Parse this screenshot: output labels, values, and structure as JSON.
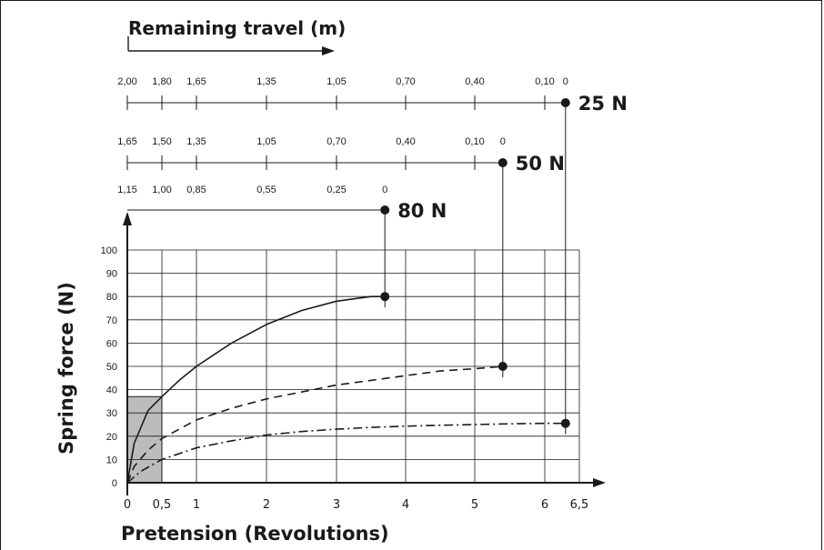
{
  "chart_data": {
    "type": "line",
    "title": "Remaining travel (m)",
    "xlabel": "Pretension (Revolutions)",
    "ylabel": "Spring force (N)",
    "xlim": [
      0,
      6.5
    ],
    "ylim": [
      0,
      100
    ],
    "x_ticks": [
      "0",
      "0,5",
      "1",
      "2",
      "3",
      "4",
      "5",
      "6",
      "6,5"
    ],
    "y_ticks": [
      "0",
      "10",
      "20",
      "30",
      "40",
      "50",
      "60",
      "70",
      "80",
      "90",
      "100"
    ],
    "grid": true,
    "highlight_region": {
      "x": [
        0,
        0.5
      ],
      "y": [
        0,
        37
      ]
    },
    "series": [
      {
        "name": "80 N",
        "line_style": "solid",
        "x": [
          0,
          0.1,
          0.3,
          0.5,
          0.75,
          1,
          1.5,
          2,
          2.5,
          3,
          3.5,
          3.7
        ],
        "y": [
          0,
          17,
          31,
          37,
          44,
          50,
          60,
          68,
          74,
          78,
          80,
          80
        ]
      },
      {
        "name": "50 N",
        "line_style": "dashed",
        "x": [
          0,
          0.1,
          0.3,
          0.5,
          0.75,
          1,
          1.5,
          2,
          2.5,
          3,
          3.5,
          4,
          4.5,
          5,
          5.4
        ],
        "y": [
          0,
          7,
          14,
          19,
          23,
          27,
          32,
          36,
          39,
          42,
          44,
          46,
          48,
          49,
          50
        ]
      },
      {
        "name": "25 N",
        "line_style": "dash-dot",
        "x": [
          0,
          0.2,
          0.5,
          0.75,
          1,
          1.5,
          2,
          2.5,
          3,
          3.5,
          4,
          4.5,
          5,
          5.5,
          6,
          6.3
        ],
        "y": [
          0,
          5,
          10,
          12.5,
          15,
          18,
          20.5,
          22,
          23,
          23.8,
          24.3,
          24.7,
          25,
          25.3,
          25.5,
          25.5
        ]
      }
    ],
    "remaining_travel_scales": [
      {
        "label": "25 N",
        "ticks": [
          {
            "label": "2,00",
            "rev": 0
          },
          {
            "label": "1,80",
            "rev": 0.5
          },
          {
            "label": "1,65",
            "rev": 1
          },
          {
            "label": "1,35",
            "rev": 2
          },
          {
            "label": "1,05",
            "rev": 3
          },
          {
            "label": "0,70",
            "rev": 4
          },
          {
            "label": "0,40",
            "rev": 5
          },
          {
            "label": "0,10",
            "rev": 6
          },
          {
            "label": "0",
            "rev": 6.3
          }
        ]
      },
      {
        "label": "50 N",
        "ticks": [
          {
            "label": "1,65",
            "rev": 0
          },
          {
            "label": "1,50",
            "rev": 0.5
          },
          {
            "label": "1,35",
            "rev": 1
          },
          {
            "label": "1,05",
            "rev": 2
          },
          {
            "label": "0,70",
            "rev": 3
          },
          {
            "label": "0,40",
            "rev": 4
          },
          {
            "label": "0,10",
            "rev": 5
          },
          {
            "label": "0",
            "rev": 5.4
          }
        ]
      },
      {
        "label": "80 N",
        "ticks": [
          {
            "label": "1,15",
            "rev": 0
          },
          {
            "label": "1,00",
            "rev": 0.5
          },
          {
            "label": "0,85",
            "rev": 1
          },
          {
            "label": "0,55",
            "rev": 2
          },
          {
            "label": "0,25",
            "rev": 3
          },
          {
            "label": "0",
            "rev": 3.7
          }
        ]
      }
    ]
  }
}
